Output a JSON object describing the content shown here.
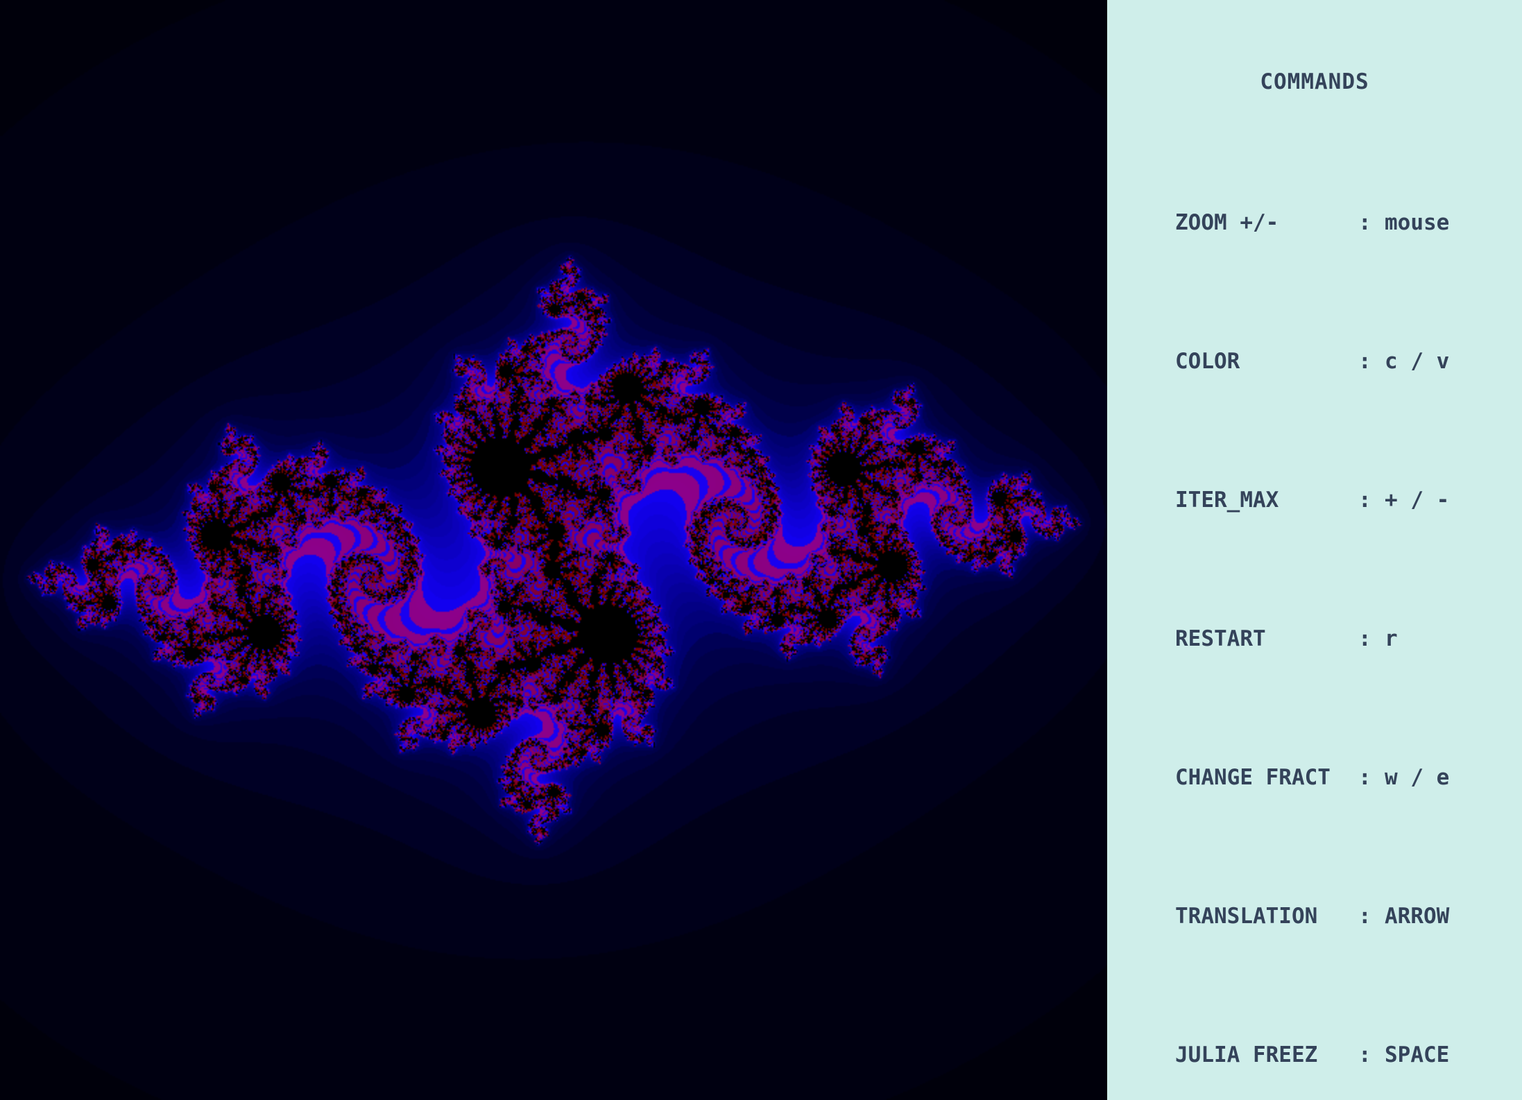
{
  "fractal": {
    "type": "julia",
    "palette": {
      "background": "#000005",
      "halo": "#00001a",
      "body": "#1a00ff",
      "detail": "#8b0000",
      "core": "#000000"
    }
  },
  "panel": {
    "title": "COMMANDS",
    "background": "#cfeeea",
    "text_color": "#34435a",
    "commands": [
      {
        "name": "ZOOM +/-",
        "separator": ":",
        "key": "mouse"
      },
      {
        "name": "COLOR",
        "separator": ":",
        "key": "c / v"
      },
      {
        "name": "ITER_MAX",
        "separator": ":",
        "key": "+ / -"
      },
      {
        "name": "RESTART",
        "separator": ":",
        "key": "r"
      },
      {
        "name": "CHANGE FRACT",
        "separator": ":",
        "key": "w / e"
      },
      {
        "name": "TRANSLATION",
        "separator": ":",
        "key": "ARROW"
      },
      {
        "name": "JULIA FREEZ",
        "separator": ":",
        "key": "SPACE"
      }
    ]
  }
}
